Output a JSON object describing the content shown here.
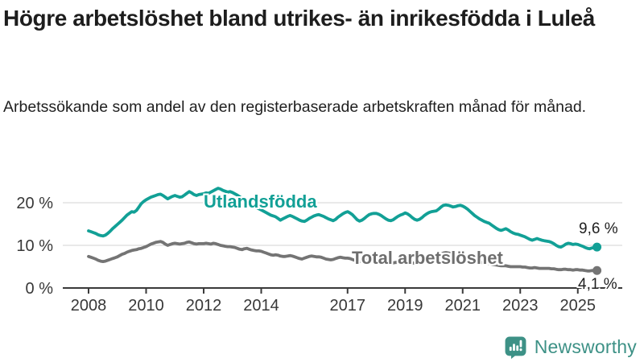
{
  "header": {
    "title": "Högre arbetslöshet bland utrikes- än inrikesfödda i Luleå",
    "subtitle": "Arbetssökande som andel av den registerbaserade arbetskraften månad för månad."
  },
  "chart_data": {
    "type": "line",
    "unit": "%",
    "frequency": "monthly",
    "x_start": "2008-01",
    "x_end": "2025-09",
    "x_ticks": [
      2008,
      2010,
      2012,
      2014,
      2017,
      2019,
      2021,
      2023,
      2025
    ],
    "y_ticks": [
      0,
      10,
      20
    ],
    "y_tick_labels": [
      "0 %",
      "10 %",
      "20 %"
    ],
    "ylim": [
      0,
      25
    ],
    "grid": "horizontal",
    "legend_position": "inline-on-line",
    "series": [
      {
        "name": "Utlandsfödda",
        "color": "#12a096",
        "end_value": 9.6,
        "end_label": "9,6 %",
        "values": [
          13.4,
          13.2,
          13.0,
          12.8,
          12.5,
          12.3,
          12.2,
          12.4,
          12.8,
          13.3,
          13.9,
          14.4,
          14.9,
          15.4,
          15.9,
          16.5,
          17.1,
          17.5,
          17.9,
          17.8,
          18.2,
          19.0,
          19.8,
          20.3,
          20.7,
          21.0,
          21.3,
          21.5,
          21.7,
          21.9,
          22.0,
          21.7,
          21.3,
          20.9,
          21.2,
          21.5,
          21.7,
          21.5,
          21.3,
          21.4,
          21.8,
          22.2,
          22.6,
          22.3,
          21.9,
          21.7,
          21.9,
          22.0,
          22.1,
          22.3,
          22.2,
          22.5,
          22.8,
          23.1,
          23.4,
          23.2,
          22.9,
          22.7,
          22.5,
          22.6,
          22.4,
          22.1,
          21.8,
          21.4,
          21.0,
          20.6,
          20.3,
          20.0,
          19.6,
          19.2,
          18.9,
          18.6,
          18.3,
          18.0,
          17.7,
          17.4,
          17.1,
          16.9,
          16.7,
          16.3,
          15.9,
          16.2,
          16.5,
          16.8,
          17.0,
          16.8,
          16.5,
          16.2,
          15.9,
          15.7,
          15.6,
          15.9,
          16.3,
          16.6,
          16.9,
          17.1,
          17.2,
          17.0,
          16.8,
          16.5,
          16.2,
          16.0,
          15.8,
          16.1,
          16.6,
          17.0,
          17.4,
          17.7,
          17.9,
          17.6,
          17.2,
          16.6,
          16.0,
          15.7,
          15.9,
          16.3,
          16.8,
          17.2,
          17.4,
          17.5,
          17.5,
          17.3,
          17.0,
          16.6,
          16.2,
          15.9,
          15.8,
          16.0,
          16.4,
          16.8,
          17.1,
          17.3,
          17.6,
          17.4,
          17.0,
          16.5,
          16.1,
          15.9,
          16.1,
          16.5,
          17.0,
          17.4,
          17.7,
          17.9,
          18.0,
          18.1,
          18.5,
          19.0,
          19.4,
          19.5,
          19.4,
          19.2,
          19.0,
          19.1,
          19.3,
          19.4,
          19.2,
          18.9,
          18.5,
          18.0,
          17.5,
          17.0,
          16.6,
          16.2,
          15.9,
          15.6,
          15.4,
          15.2,
          14.8,
          14.4,
          14.0,
          13.7,
          13.5,
          13.7,
          13.9,
          13.6,
          13.2,
          12.9,
          12.7,
          12.6,
          12.4,
          12.2,
          12.0,
          11.7,
          11.4,
          11.2,
          11.4,
          11.6,
          11.4,
          11.2,
          11.1,
          11.0,
          10.9,
          10.7,
          10.4,
          10.0,
          9.7,
          9.6,
          9.9,
          10.3,
          10.5,
          10.4,
          10.2,
          10.3,
          10.2,
          10.0,
          9.8,
          9.5,
          9.3,
          9.2,
          9.4,
          9.5,
          9.6
        ]
      },
      {
        "name": "Total arbetslöshet",
        "color": "#747474",
        "end_value": 4.1,
        "end_label": "4,1 %",
        "values": [
          7.4,
          7.2,
          7.0,
          6.8,
          6.5,
          6.3,
          6.2,
          6.3,
          6.5,
          6.7,
          6.9,
          7.1,
          7.3,
          7.6,
          7.9,
          8.1,
          8.4,
          8.6,
          8.8,
          8.9,
          9.0,
          9.2,
          9.3,
          9.5,
          9.7,
          10.0,
          10.3,
          10.5,
          10.7,
          10.8,
          10.9,
          10.7,
          10.3,
          10.0,
          10.2,
          10.4,
          10.5,
          10.4,
          10.3,
          10.4,
          10.5,
          10.7,
          10.8,
          10.6,
          10.4,
          10.3,
          10.4,
          10.4,
          10.4,
          10.5,
          10.4,
          10.3,
          10.5,
          10.4,
          10.2,
          10.0,
          9.9,
          9.8,
          9.7,
          9.7,
          9.6,
          9.5,
          9.3,
          9.1,
          9.0,
          9.2,
          9.3,
          9.1,
          8.9,
          8.8,
          8.7,
          8.7,
          8.6,
          8.4,
          8.2,
          8.0,
          7.8,
          7.7,
          7.8,
          7.7,
          7.5,
          7.4,
          7.4,
          7.5,
          7.6,
          7.5,
          7.3,
          7.1,
          6.9,
          6.8,
          7.0,
          7.2,
          7.4,
          7.5,
          7.4,
          7.3,
          7.3,
          7.2,
          7.0,
          6.8,
          6.7,
          6.6,
          6.7,
          6.9,
          7.1,
          7.2,
          7.1,
          7.0,
          7.0,
          6.9,
          6.7,
          6.5,
          6.3,
          6.2,
          6.3,
          6.4,
          6.5,
          6.5,
          6.4,
          6.4,
          6.3,
          6.2,
          6.1,
          5.9,
          5.8,
          5.7,
          5.8,
          5.9,
          6.0,
          6.0,
          6.0,
          6.1,
          6.1,
          6.0,
          5.9,
          5.9,
          5.8,
          5.8,
          5.9,
          6.0,
          6.1,
          6.2,
          6.3,
          6.4,
          6.6,
          6.8,
          7.3,
          7.9,
          8.2,
          8.3,
          8.2,
          8.1,
          7.9,
          7.8,
          7.7,
          7.7,
          7.6,
          7.5,
          7.3,
          7.0,
          6.8,
          6.6,
          6.4,
          6.2,
          6.0,
          5.9,
          5.8,
          5.7,
          5.6,
          5.5,
          5.4,
          5.3,
          5.2,
          5.2,
          5.2,
          5.1,
          5.0,
          5.0,
          5.0,
          5.0,
          5.0,
          4.9,
          4.9,
          4.8,
          4.7,
          4.7,
          4.8,
          4.7,
          4.6,
          4.6,
          4.6,
          4.6,
          4.6,
          4.5,
          4.5,
          4.4,
          4.3,
          4.3,
          4.4,
          4.4,
          4.3,
          4.3,
          4.2,
          4.3,
          4.3,
          4.2,
          4.2,
          4.1,
          4.0,
          4.0,
          4.1,
          4.1,
          4.1
        ]
      }
    ]
  },
  "branding": {
    "logo_text": "Newsworthy",
    "logo_color": "#3d9186"
  },
  "colors": {
    "accent_teal": "#12a096",
    "line_gray": "#747474",
    "axis": "#3a3a3a",
    "gridline": "#dcdcdc",
    "text": "#1d1d1d"
  }
}
